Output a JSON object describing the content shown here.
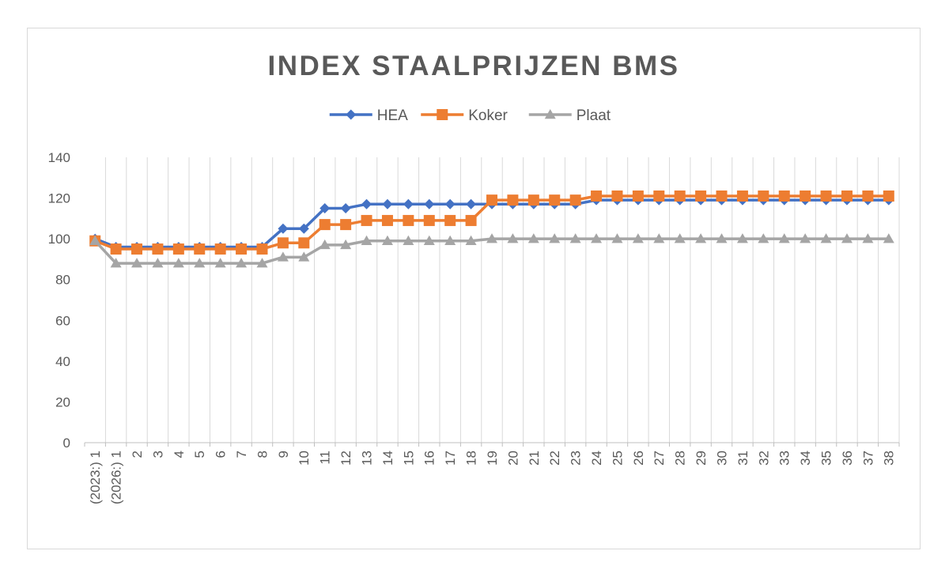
{
  "chart_data": {
    "type": "line",
    "title": "INDEX STAALPRIJZEN BMS",
    "xlabel": "",
    "ylabel": "",
    "ylim": [
      0,
      140
    ],
    "yticks": [
      "0",
      "20",
      "40",
      "60",
      "80",
      "100",
      "120",
      "140"
    ],
    "grid": "vertical",
    "legend_position": "top",
    "categories": [
      "(2023:) 1",
      "(2026:) 1",
      "2",
      "3",
      "4",
      "5",
      "6",
      "7",
      "8",
      "9",
      "10",
      "11",
      "12",
      "13",
      "14",
      "15",
      "16",
      "17",
      "18",
      "19",
      "20",
      "21",
      "22",
      "23",
      "24",
      "25",
      "26",
      "27",
      "28",
      "29",
      "30",
      "31",
      "32",
      "33",
      "34",
      "35",
      "36",
      "37",
      "38"
    ],
    "series": [
      {
        "name": "HEA",
        "color": "#4472c4",
        "marker": "diamond",
        "values": [
          100,
          96,
          96,
          96,
          96,
          96,
          96,
          96,
          96,
          105,
          105,
          115,
          115,
          117,
          117,
          117,
          117,
          117,
          117,
          117,
          117,
          117,
          117,
          117,
          119,
          119,
          119,
          119,
          119,
          119,
          119,
          119,
          119,
          119,
          119,
          119,
          119,
          119,
          119
        ]
      },
      {
        "name": "Koker",
        "color": "#ed7d31",
        "marker": "square",
        "values": [
          99,
          95,
          95,
          95,
          95,
          95,
          95,
          95,
          95,
          98,
          98,
          107,
          107,
          109,
          109,
          109,
          109,
          109,
          109,
          119,
          119,
          119,
          119,
          119,
          121,
          121,
          121,
          121,
          121,
          121,
          121,
          121,
          121,
          121,
          121,
          121,
          121,
          121,
          121
        ]
      },
      {
        "name": "Plaat",
        "color": "#a5a5a5",
        "marker": "triangle",
        "values": [
          99,
          88,
          88,
          88,
          88,
          88,
          88,
          88,
          88,
          91,
          91,
          97,
          97,
          99,
          99,
          99,
          99,
          99,
          99,
          100,
          100,
          100,
          100,
          100,
          100,
          100,
          100,
          100,
          100,
          100,
          100,
          100,
          100,
          100,
          100,
          100,
          100,
          100,
          100
        ]
      }
    ]
  }
}
